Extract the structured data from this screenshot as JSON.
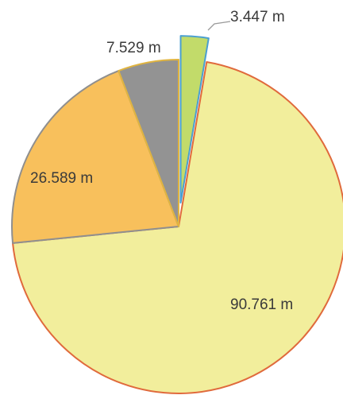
{
  "chart_data": {
    "type": "pie",
    "slices": [
      {
        "label": "3.447 m",
        "value": 3.447,
        "color": "#c2db6a",
        "border": "#4a9fd1",
        "exploded": true
      },
      {
        "label": "90.761 m",
        "value": 90.761,
        "color": "#f2ee9c",
        "border": "#e06a3c",
        "exploded": false
      },
      {
        "label": "26.589 m",
        "value": 26.589,
        "color": "#f8c05c",
        "border": "#8f8f8f",
        "exploded": false
      },
      {
        "label": "7.529 m",
        "value": 7.529,
        "color": "#939393",
        "border": "#e0b440",
        "exploded": false
      }
    ],
    "start_angle_deg": 0,
    "direction": "clockwise",
    "legend": "none",
    "title": ""
  }
}
